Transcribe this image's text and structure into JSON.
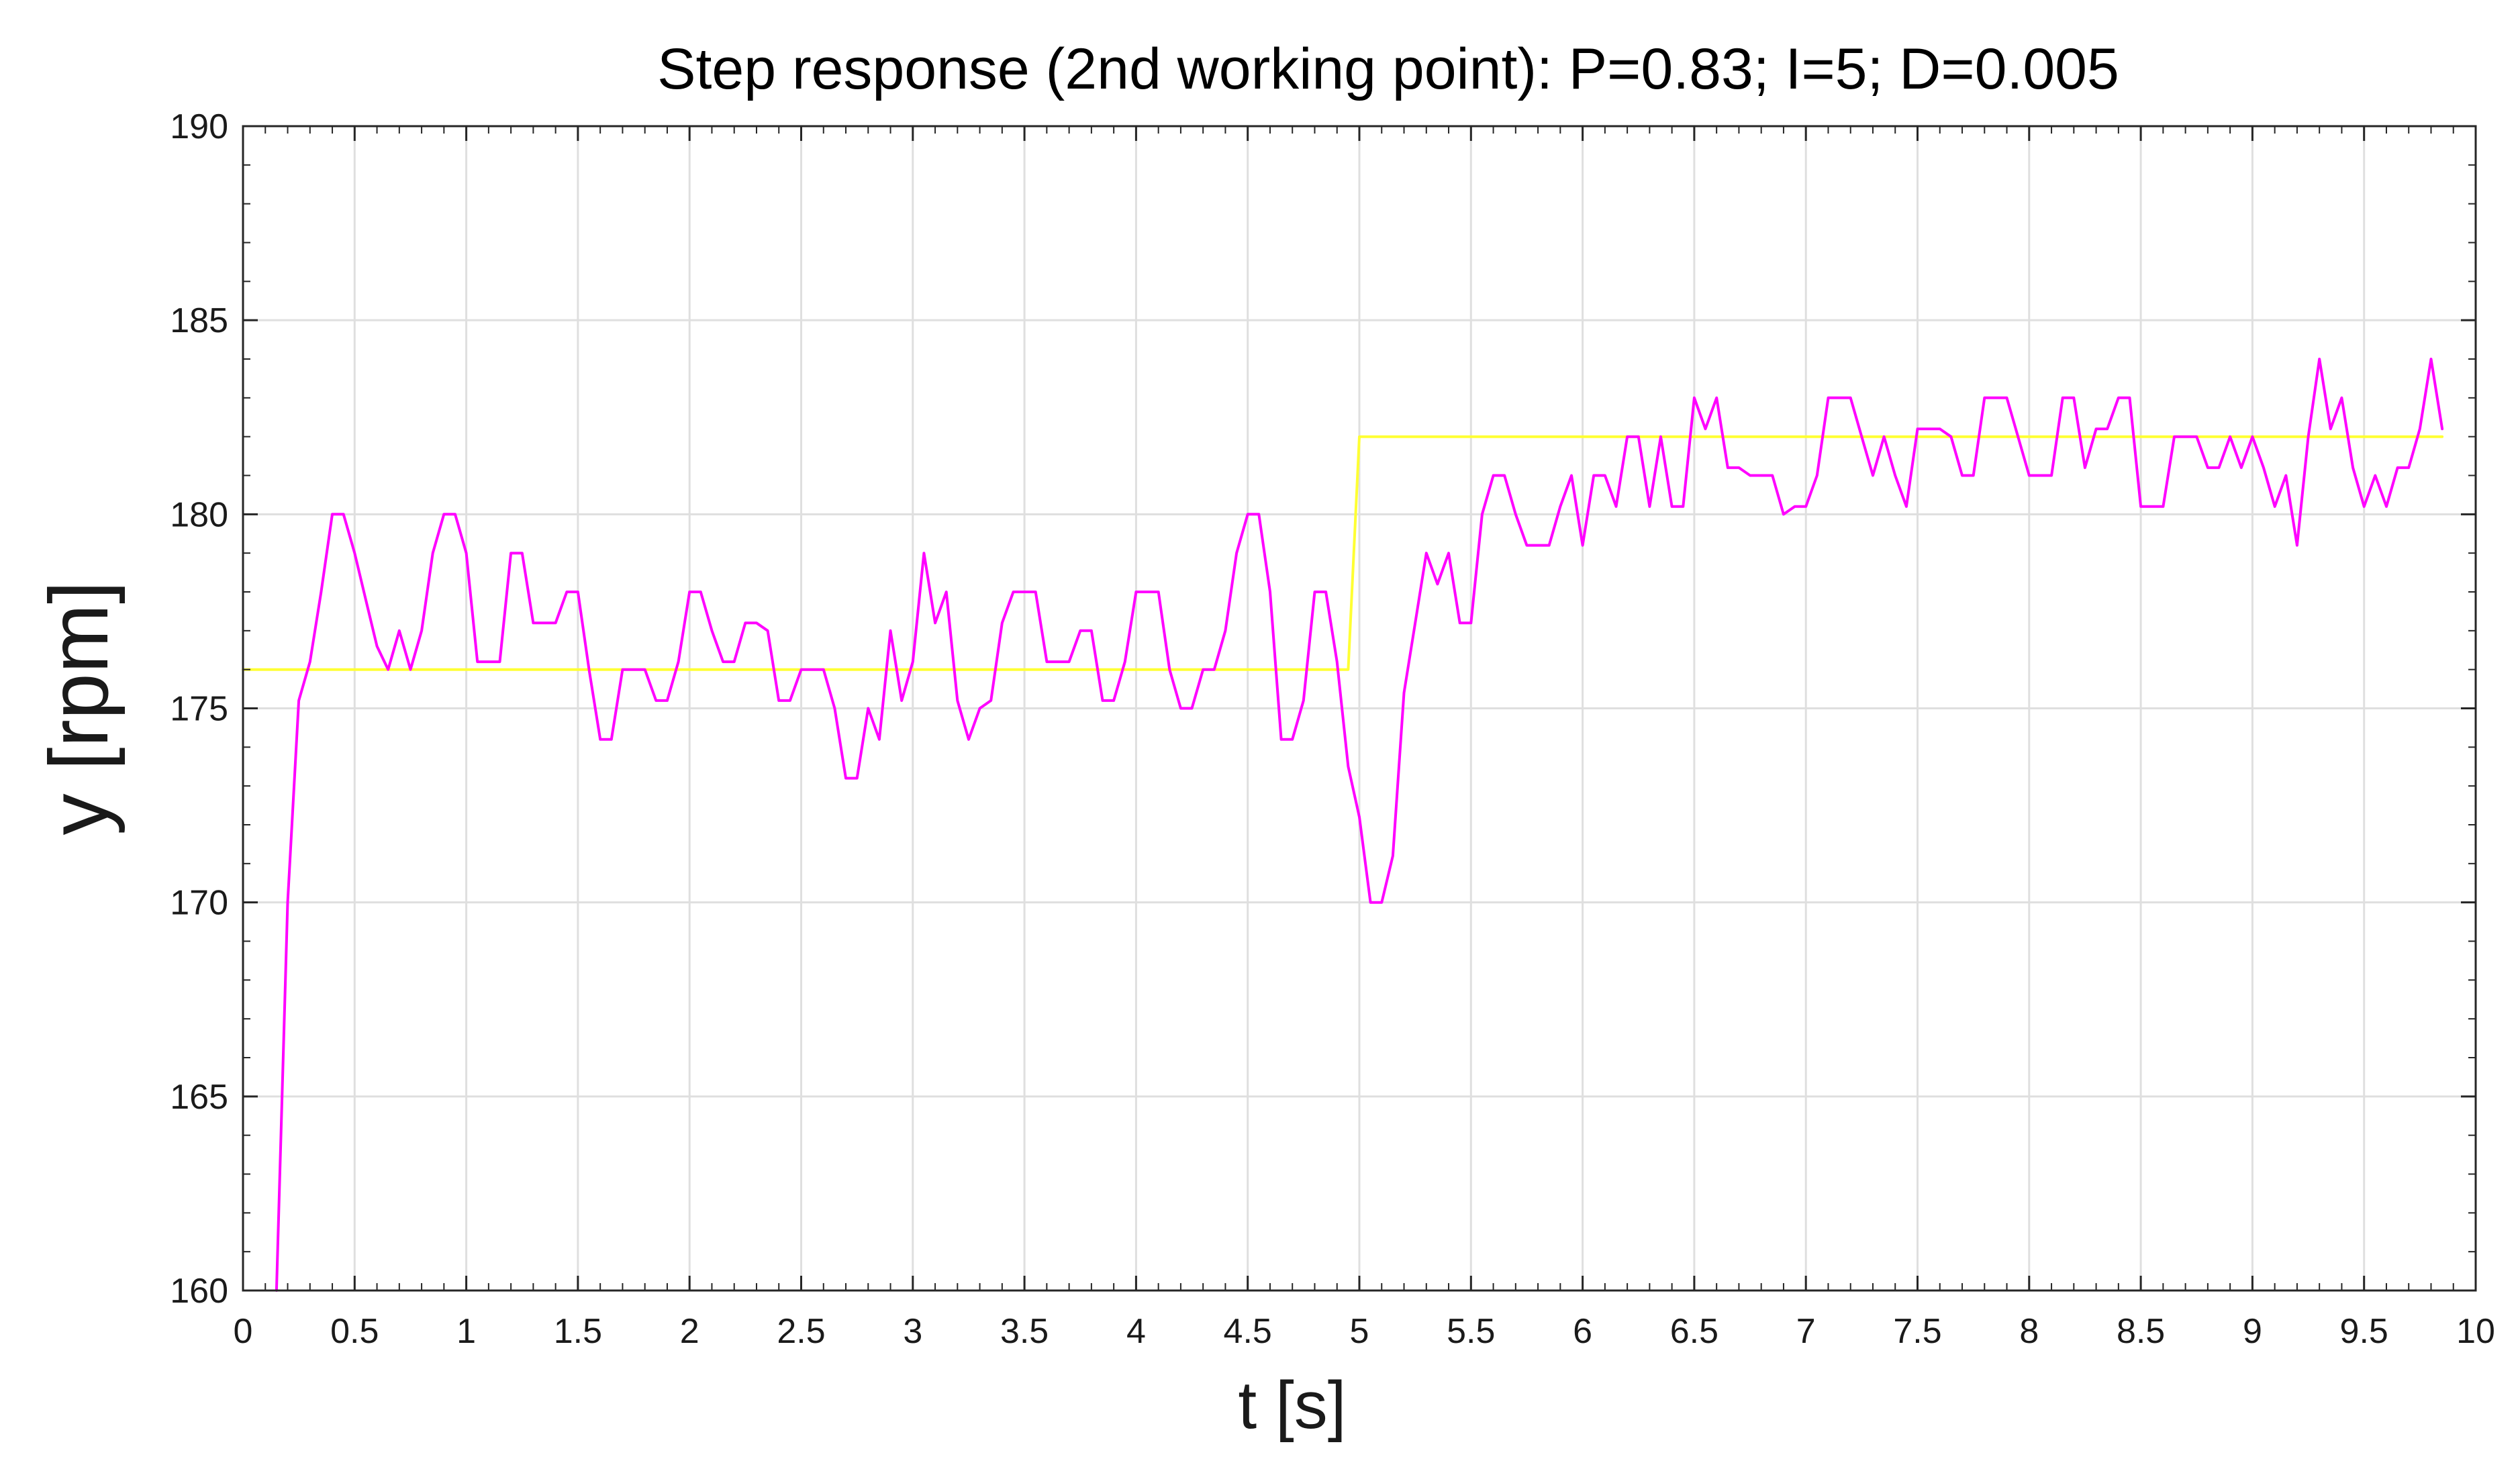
{
  "chart_data": {
    "type": "line",
    "title": "Step response (2nd working point): P=0.83; I=5; D=0.005",
    "xlabel": "t [s]",
    "ylabel": "y [rpm]",
    "xlim": [
      0,
      10
    ],
    "ylim": [
      160,
      190
    ],
    "x_ticks": [
      0,
      0.5,
      1,
      1.5,
      2,
      2.5,
      3,
      3.5,
      4,
      4.5,
      5,
      5.5,
      6,
      6.5,
      7,
      7.5,
      8,
      8.5,
      9,
      9.5,
      10
    ],
    "x_tick_labels": [
      "0",
      "0.5",
      "1",
      "1.5",
      "2",
      "2.5",
      "3",
      "3.5",
      "4",
      "4.5",
      "5",
      "5.5",
      "6",
      "6.5",
      "7",
      "7.5",
      "8",
      "8.5",
      "9",
      "9.5",
      "10"
    ],
    "y_ticks": [
      160,
      165,
      170,
      175,
      180,
      185,
      190
    ],
    "y_tick_labels": [
      "160",
      "165",
      "170",
      "175",
      "180",
      "185",
      "190"
    ],
    "grid": true,
    "legend": "none",
    "series": [
      {
        "color": "#ffff33",
        "x": [
          0,
          4.95,
          5.0,
          9.85
        ],
        "y": [
          176,
          176,
          182,
          182
        ]
      },
      {
        "color": "#ff00ff",
        "x": [
          0.15,
          0.2,
          0.25,
          0.3,
          0.35,
          0.4,
          0.45,
          0.5,
          0.55,
          0.6,
          0.65,
          0.7,
          0.75,
          0.8,
          0.85,
          0.9,
          0.95,
          1.0,
          1.05,
          1.1,
          1.15,
          1.2,
          1.25,
          1.3,
          1.35,
          1.4,
          1.45,
          1.5,
          1.55,
          1.6,
          1.65,
          1.7,
          1.75,
          1.8,
          1.85,
          1.9,
          1.95,
          2.0,
          2.05,
          2.1,
          2.15,
          2.2,
          2.25,
          2.3,
          2.35,
          2.4,
          2.45,
          2.5,
          2.55,
          2.6,
          2.65,
          2.7,
          2.75,
          2.8,
          2.85,
          2.9,
          2.95,
          3.0,
          3.05,
          3.1,
          3.15,
          3.2,
          3.25,
          3.3,
          3.35,
          3.4,
          3.45,
          3.5,
          3.55,
          3.6,
          3.65,
          3.7,
          3.75,
          3.8,
          3.85,
          3.9,
          3.95,
          4.0,
          4.05,
          4.1,
          4.15,
          4.2,
          4.25,
          4.3,
          4.35,
          4.4,
          4.45,
          4.5,
          4.55,
          4.6,
          4.65,
          4.7,
          4.75,
          4.8,
          4.85,
          4.9,
          4.95,
          5.0,
          5.05,
          5.1,
          5.15,
          5.2,
          5.25,
          5.3,
          5.35,
          5.4,
          5.45,
          5.5,
          5.55,
          5.6,
          5.65,
          5.7,
          5.75,
          5.8,
          5.85,
          5.9,
          5.95,
          6.0,
          6.05,
          6.1,
          6.15,
          6.2,
          6.25,
          6.3,
          6.35,
          6.4,
          6.45,
          6.5,
          6.55,
          6.6,
          6.65,
          6.7,
          6.75,
          6.8,
          6.85,
          6.9,
          6.95,
          7.0,
          7.05,
          7.1,
          7.15,
          7.2,
          7.25,
          7.3,
          7.35,
          7.4,
          7.45,
          7.5,
          7.55,
          7.6,
          7.65,
          7.7,
          7.75,
          7.8,
          7.85,
          7.9,
          7.95,
          8.0,
          8.05,
          8.1,
          8.15,
          8.2,
          8.25,
          8.3,
          8.35,
          8.4,
          8.45,
          8.5,
          8.55,
          8.6,
          8.65,
          8.7,
          8.75,
          8.8,
          8.85,
          8.9,
          8.95,
          9.0,
          9.05,
          9.1,
          9.15,
          9.2,
          9.25,
          9.3,
          9.35,
          9.4,
          9.45,
          9.5,
          9.55,
          9.6,
          9.65,
          9.7,
          9.75,
          9.8,
          9.85
        ],
        "y": [
          160,
          170,
          175.2,
          176.2,
          178,
          180,
          180,
          179,
          177.8,
          176.6,
          176,
          177,
          176,
          177,
          179,
          180,
          180,
          179,
          176.2,
          176.2,
          176.2,
          179,
          179,
          177.2,
          177.2,
          177.2,
          178,
          178,
          176,
          174.2,
          174.2,
          176,
          176,
          176,
          175.2,
          175.2,
          176.2,
          178,
          178,
          177,
          176.2,
          176.2,
          177.2,
          177.2,
          177,
          175.2,
          175.2,
          176,
          176,
          176,
          175,
          173.2,
          173.2,
          175,
          174.2,
          177,
          175.2,
          176.2,
          179,
          177.2,
          178,
          175.2,
          174.2,
          175,
          175.2,
          177.2,
          178,
          178,
          178,
          176.2,
          176.2,
          176.2,
          177,
          177,
          175.2,
          175.2,
          176.2,
          178,
          178,
          178,
          176,
          175,
          175,
          176,
          176,
          177,
          179,
          180,
          180,
          178,
          174.2,
          174.2,
          175.2,
          178,
          178,
          176.2,
          173.5,
          172.2,
          170,
          170,
          171.2,
          175.4,
          177.2,
          179,
          178.2,
          179,
          177.2,
          177.2,
          180,
          181,
          181,
          180,
          179.2,
          179.2,
          179.2,
          180.2,
          181,
          179.2,
          181,
          181,
          180.2,
          182,
          182,
          180.2,
          182,
          180.2,
          180.2,
          183,
          182.2,
          183,
          181.2,
          181.2,
          181,
          181,
          181,
          180,
          180.2,
          180.2,
          181,
          183,
          183,
          183,
          182,
          181,
          182,
          181,
          180.2,
          182.2,
          182.2,
          182.2,
          182,
          181,
          181,
          183,
          183,
          183,
          182,
          181,
          181,
          181,
          183,
          183,
          181.2,
          182.2,
          182.2,
          183,
          183,
          180.2,
          180.2,
          180.2,
          182,
          182,
          182,
          181.2,
          181.2,
          182,
          181.2,
          182,
          181.2,
          180.2,
          181,
          179.2,
          182,
          184,
          182.2,
          183,
          181.2,
          180.2,
          181,
          180.2,
          181.2,
          181.2,
          182.2,
          184,
          182.2
        ]
      }
    ]
  }
}
